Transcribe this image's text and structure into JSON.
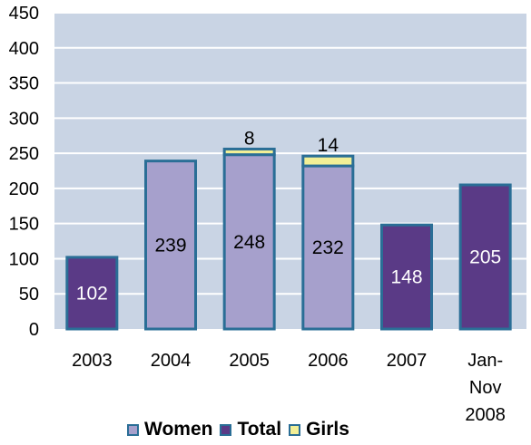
{
  "chart_data": {
    "type": "bar",
    "stacked": true,
    "categories": [
      "2003",
      "2004",
      "2005",
      "2006",
      "2007",
      "Jan-Nov 2008"
    ],
    "category_lines": [
      [
        "2003"
      ],
      [
        "2004"
      ],
      [
        "2005"
      ],
      [
        "2006"
      ],
      [
        "2007"
      ],
      [
        "Jan-",
        "Nov",
        "2008"
      ]
    ],
    "series": [
      {
        "name": "Women",
        "values": [
          null,
          239,
          248,
          232,
          null,
          null
        ],
        "color": "#a6a0cc"
      },
      {
        "name": "Total",
        "values": [
          102,
          null,
          null,
          null,
          148,
          205
        ],
        "color": "#5a3a86"
      },
      {
        "name": "Girls",
        "values": [
          null,
          null,
          8,
          14,
          null,
          null
        ],
        "color": "#f2ef96"
      }
    ],
    "data_labels": [
      {
        "category": "2003",
        "series": "Total",
        "text": "102",
        "position": "inside"
      },
      {
        "category": "2004",
        "series": "Women",
        "text": "239",
        "position": "inside"
      },
      {
        "category": "2005",
        "series": "Women",
        "text": "248",
        "position": "inside"
      },
      {
        "category": "2005",
        "series": "Girls",
        "text": "8",
        "position": "above"
      },
      {
        "category": "2006",
        "series": "Women",
        "text": "232",
        "position": "inside"
      },
      {
        "category": "2006",
        "series": "Girls",
        "text": "14",
        "position": "above"
      },
      {
        "category": "2007",
        "series": "Total",
        "text": "148",
        "position": "inside"
      },
      {
        "category": "Jan-Nov 2008",
        "series": "Total",
        "text": "205",
        "position": "inside"
      }
    ],
    "ylim": [
      0,
      450
    ],
    "yticks": [
      0,
      50,
      100,
      150,
      200,
      250,
      300,
      350,
      400,
      450
    ],
    "grid": true,
    "plot_background": "#c9d4e4",
    "bar_outline": "#2a6e96",
    "legend": {
      "placement": "bottom",
      "entries": [
        "Women",
        "Total",
        "Girls"
      ]
    },
    "title": "",
    "xlabel": "",
    "ylabel": ""
  }
}
